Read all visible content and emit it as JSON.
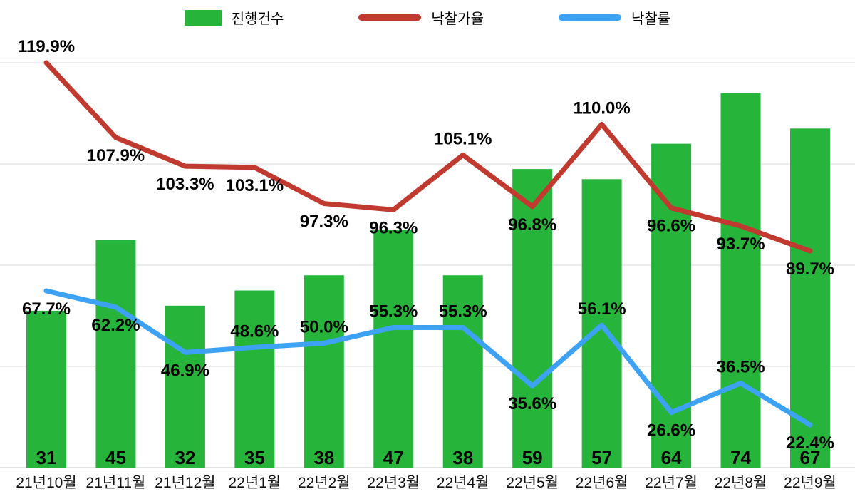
{
  "chart_data": {
    "type": "bar+line combo",
    "title": "",
    "categories": [
      "21년10월",
      "21년11월",
      "21년12월",
      "22년1월",
      "22년2월",
      "22년3월",
      "22년4월",
      "22년5월",
      "22년6월",
      "22년7월",
      "22년8월",
      "22년9월"
    ],
    "series": [
      {
        "name": "진행건수",
        "type": "bar",
        "color": "#27b43a",
        "values": [
          31,
          45,
          32,
          35,
          38,
          47,
          38,
          59,
          57,
          64,
          74,
          67
        ]
      },
      {
        "name": "낙찰가율",
        "type": "line",
        "color": "#c03a30",
        "unit": "%",
        "values": [
          119.9,
          107.9,
          103.3,
          103.1,
          97.3,
          96.3,
          105.1,
          96.8,
          110.0,
          96.6,
          93.7,
          89.7
        ],
        "label_positions": [
          "above",
          "below",
          "below",
          "below",
          "below",
          "below",
          "above",
          "below",
          "above",
          "below",
          "below",
          "below"
        ]
      },
      {
        "name": "낙찰률",
        "type": "line",
        "color": "#3ea2f4",
        "unit": "%",
        "values": [
          67.7,
          62.2,
          46.9,
          48.6,
          50.0,
          55.3,
          55.3,
          35.6,
          56.1,
          26.6,
          36.5,
          22.4
        ],
        "label_positions": [
          "below",
          "below",
          "below",
          "above",
          "above",
          "above",
          "above",
          "below",
          "above",
          "below",
          "above",
          "below"
        ]
      }
    ],
    "grid": true,
    "gridline_color": "#d9d9d9",
    "legend_position": "top-center",
    "bar_axis_range": [
      0,
      80
    ],
    "label_color": "#000000"
  }
}
